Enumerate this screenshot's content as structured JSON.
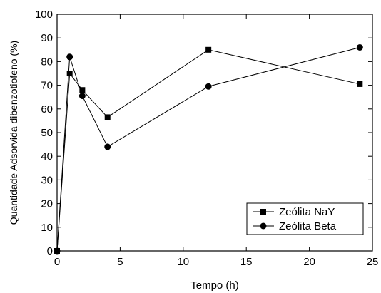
{
  "chart_data": {
    "type": "line",
    "title": "",
    "xlabel": "Tempo (h)",
    "ylabel": "Quantidade Adsorvida dibenzotiofeno (%)",
    "xlim": [
      0,
      25
    ],
    "ylim": [
      0,
      100
    ],
    "xticks": [
      0,
      5,
      10,
      15,
      20,
      25
    ],
    "yticks": [
      0,
      10,
      20,
      30,
      40,
      50,
      60,
      70,
      80,
      90,
      100
    ],
    "grid": false,
    "legend_position": "bottom-right",
    "series": [
      {
        "name": "Zeólita NaY",
        "marker": "square",
        "color": "#000000",
        "x": [
          0,
          1,
          2,
          4,
          12,
          24
        ],
        "y": [
          0,
          75,
          68,
          56.5,
          85,
          70.5
        ]
      },
      {
        "name": "Zeólita Beta",
        "marker": "circle",
        "color": "#000000",
        "x": [
          0,
          1,
          2,
          4,
          12,
          24
        ],
        "y": [
          0,
          82,
          65.5,
          44,
          69.5,
          86
        ]
      }
    ]
  }
}
